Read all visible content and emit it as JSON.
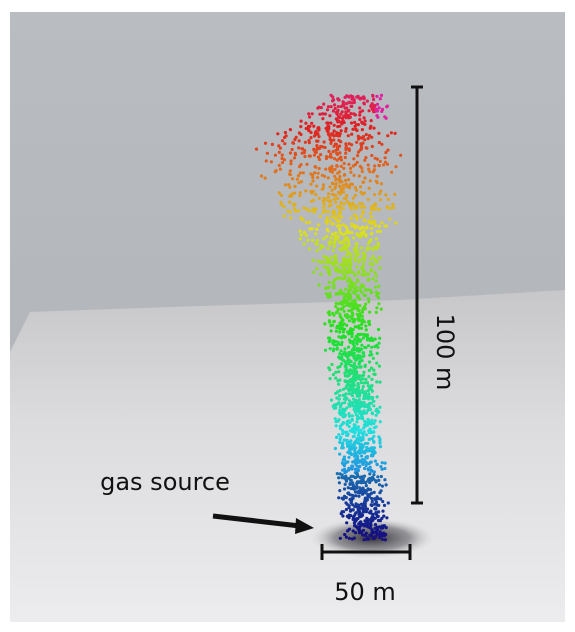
{
  "annotations": {
    "source": "gas source",
    "width": "50 m",
    "height": "100 m"
  }
}
